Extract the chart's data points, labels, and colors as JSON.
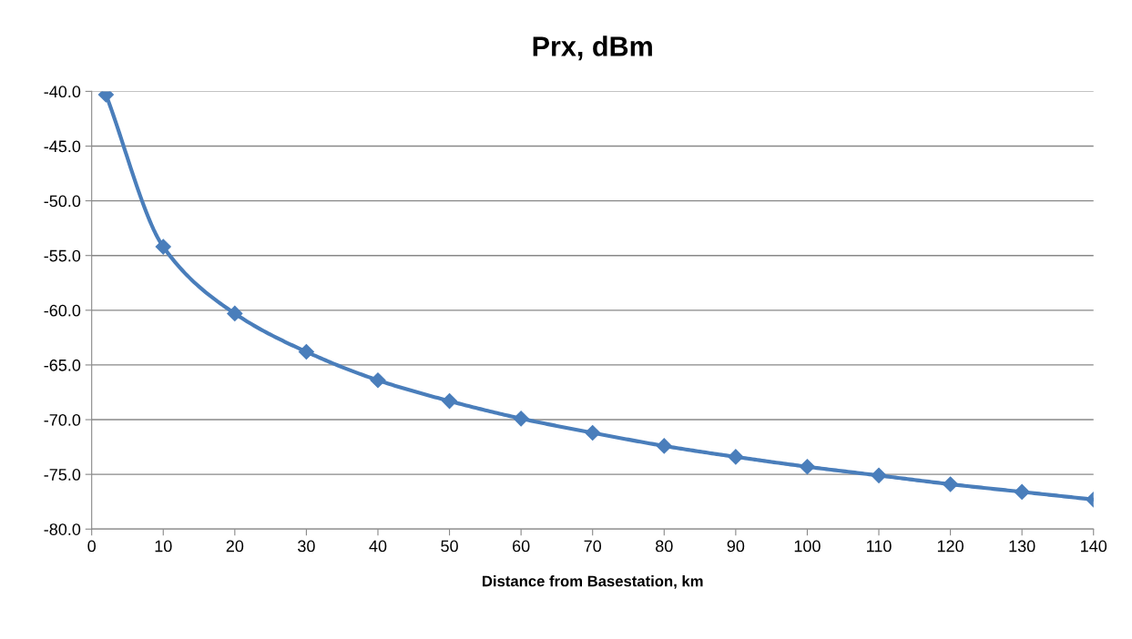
{
  "chart_data": {
    "type": "line",
    "title": "Prx, dBm",
    "xlabel": "Distance from Basestation, km",
    "x": [
      2,
      10,
      20,
      30,
      40,
      50,
      60,
      70,
      80,
      90,
      100,
      110,
      120,
      130,
      140
    ],
    "series": [
      {
        "color": "#4a7ebb",
        "values": [
          -40.3,
          -54.2,
          -60.3,
          -63.8,
          -66.4,
          -68.3,
          -69.9,
          -71.2,
          -72.4,
          -73.4,
          -74.3,
          -75.1,
          -75.9,
          -76.6,
          -77.3
        ]
      }
    ],
    "xlim": [
      0,
      140
    ],
    "xticks": [
      0,
      10,
      20,
      30,
      40,
      50,
      60,
      70,
      80,
      90,
      100,
      110,
      120,
      130,
      140
    ],
    "ylim": [
      -80,
      -40
    ],
    "yticks": [
      {
        "value": -80,
        "label": "-80.0"
      },
      {
        "value": -75,
        "label": "-75.0"
      },
      {
        "value": -70,
        "label": "-70.0"
      },
      {
        "value": -65,
        "label": "-65.0"
      },
      {
        "value": -60,
        "label": "-60.0"
      },
      {
        "value": -55,
        "label": "-55.0"
      },
      {
        "value": -50,
        "label": "-50.0"
      },
      {
        "value": -45,
        "label": "-45.0"
      },
      {
        "value": -40,
        "label": "-40.0"
      }
    ],
    "grid": "y",
    "marker": "diamond",
    "line_style": "solid"
  }
}
